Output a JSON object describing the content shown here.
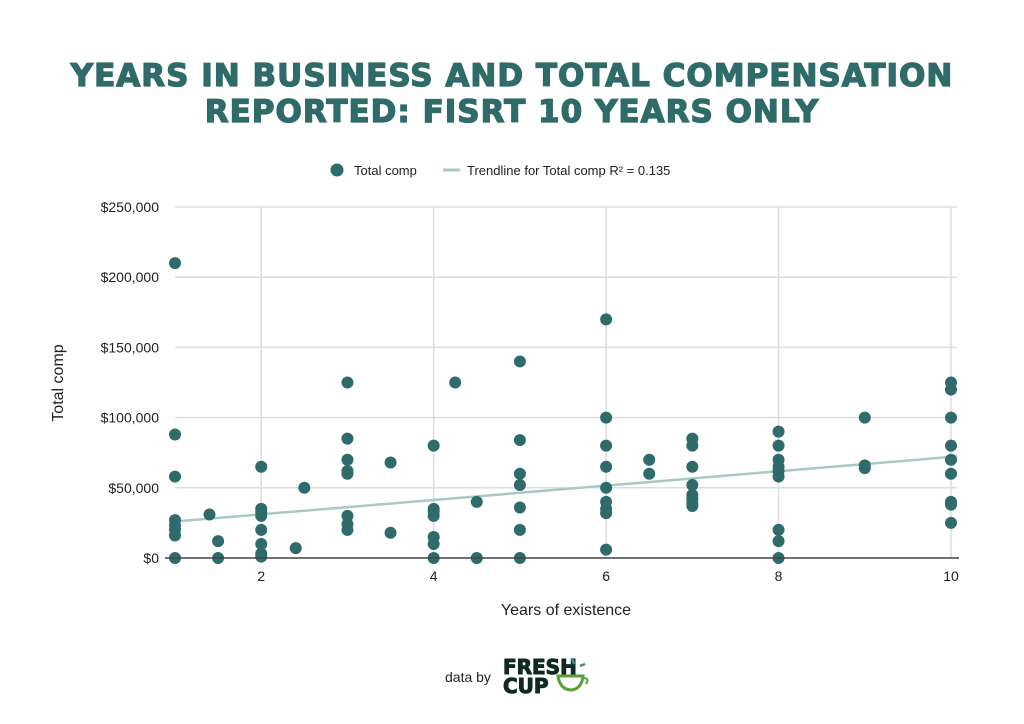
{
  "title_lines": [
    "YEARS IN BUSINESS AND TOTAL COMPENSATION",
    "REPORTED: FISRT 10 YEARS ONLY"
  ],
  "footer": {
    "data_by": "data by",
    "logo_line1": "FRESH",
    "logo_line2": "CUP"
  },
  "colors": {
    "title": "#2f6b69",
    "points": "#2f6b6b",
    "trendline": "#a8c8c6",
    "grid": "#dddddd"
  },
  "chart_data": {
    "type": "scatter",
    "title": "YEARS IN BUSINESS AND TOTAL COMPENSATION REPORTED: FISRT 10 YEARS ONLY",
    "xlabel": "Years of existence",
    "ylabel": "Total comp",
    "xlim": [
      1,
      10
    ],
    "ylim": [
      0,
      250000
    ],
    "xticks": [
      2,
      4,
      6,
      8,
      10
    ],
    "xtick_labels": [
      "2",
      "4",
      "6",
      "8",
      "10"
    ],
    "yticks": [
      0,
      50000,
      100000,
      150000,
      200000,
      250000
    ],
    "ytick_labels": [
      "$0",
      "$50,000",
      "$100,000",
      "$150,000",
      "$200,000",
      "$250,000"
    ],
    "grid": true,
    "legend_position": "top",
    "legend": [
      "Total comp",
      "Trendline for Total comp R² = 0.135"
    ],
    "series": [
      {
        "name": "Total comp",
        "points": [
          [
            1,
            210000
          ],
          [
            1,
            88000
          ],
          [
            1,
            58000
          ],
          [
            1,
            27000
          ],
          [
            1,
            23000
          ],
          [
            1,
            20000
          ],
          [
            1,
            16000
          ],
          [
            1,
            0
          ],
          [
            1.4,
            31000
          ],
          [
            1.5,
            12000
          ],
          [
            1.5,
            0
          ],
          [
            2,
            65000
          ],
          [
            2,
            35000
          ],
          [
            2,
            33000
          ],
          [
            2,
            30000
          ],
          [
            2,
            20000
          ],
          [
            2,
            10000
          ],
          [
            2,
            3000
          ],
          [
            2,
            1000
          ],
          [
            2.4,
            7000
          ],
          [
            2.5,
            50000
          ],
          [
            3,
            125000
          ],
          [
            3,
            85000
          ],
          [
            3,
            70000
          ],
          [
            3,
            62000
          ],
          [
            3,
            60000
          ],
          [
            3,
            30000
          ],
          [
            3,
            24000
          ],
          [
            3,
            20000
          ],
          [
            3.5,
            68000
          ],
          [
            3.5,
            18000
          ],
          [
            4,
            80000
          ],
          [
            4,
            35000
          ],
          [
            4,
            33000
          ],
          [
            4,
            30000
          ],
          [
            4,
            15000
          ],
          [
            4,
            10000
          ],
          [
            4,
            0
          ],
          [
            4.25,
            125000
          ],
          [
            4.5,
            40000
          ],
          [
            4.5,
            0
          ],
          [
            5,
            140000
          ],
          [
            5,
            84000
          ],
          [
            5,
            60000
          ],
          [
            5,
            52000
          ],
          [
            5,
            36000
          ],
          [
            5,
            20000
          ],
          [
            5,
            0
          ],
          [
            6,
            170000
          ],
          [
            6,
            100000
          ],
          [
            6,
            80000
          ],
          [
            6,
            65000
          ],
          [
            6,
            50000
          ],
          [
            6,
            40000
          ],
          [
            6,
            35000
          ],
          [
            6,
            32000
          ],
          [
            6,
            6000
          ],
          [
            6.5,
            70000
          ],
          [
            6.5,
            60000
          ],
          [
            7,
            85000
          ],
          [
            7,
            80000
          ],
          [
            7,
            65000
          ],
          [
            7,
            52000
          ],
          [
            7,
            45000
          ],
          [
            7,
            42000
          ],
          [
            7,
            39000
          ],
          [
            7,
            37000
          ],
          [
            8,
            90000
          ],
          [
            8,
            80000
          ],
          [
            8,
            70000
          ],
          [
            8,
            65000
          ],
          [
            8,
            62000
          ],
          [
            8,
            58000
          ],
          [
            8,
            20000
          ],
          [
            8,
            12000
          ],
          [
            8,
            0
          ],
          [
            9,
            100000
          ],
          [
            9,
            66000
          ],
          [
            9,
            64000
          ],
          [
            10,
            125000
          ],
          [
            10,
            120000
          ],
          [
            10,
            100000
          ],
          [
            10,
            80000
          ],
          [
            10,
            70000
          ],
          [
            10,
            60000
          ],
          [
            10,
            40000
          ],
          [
            10,
            38000
          ],
          [
            10,
            25000
          ]
        ]
      }
    ],
    "trendline": {
      "name": "Trendline for Total comp",
      "r2": 0.135,
      "start": [
        1,
        26000
      ],
      "end": [
        10,
        72000
      ]
    }
  }
}
